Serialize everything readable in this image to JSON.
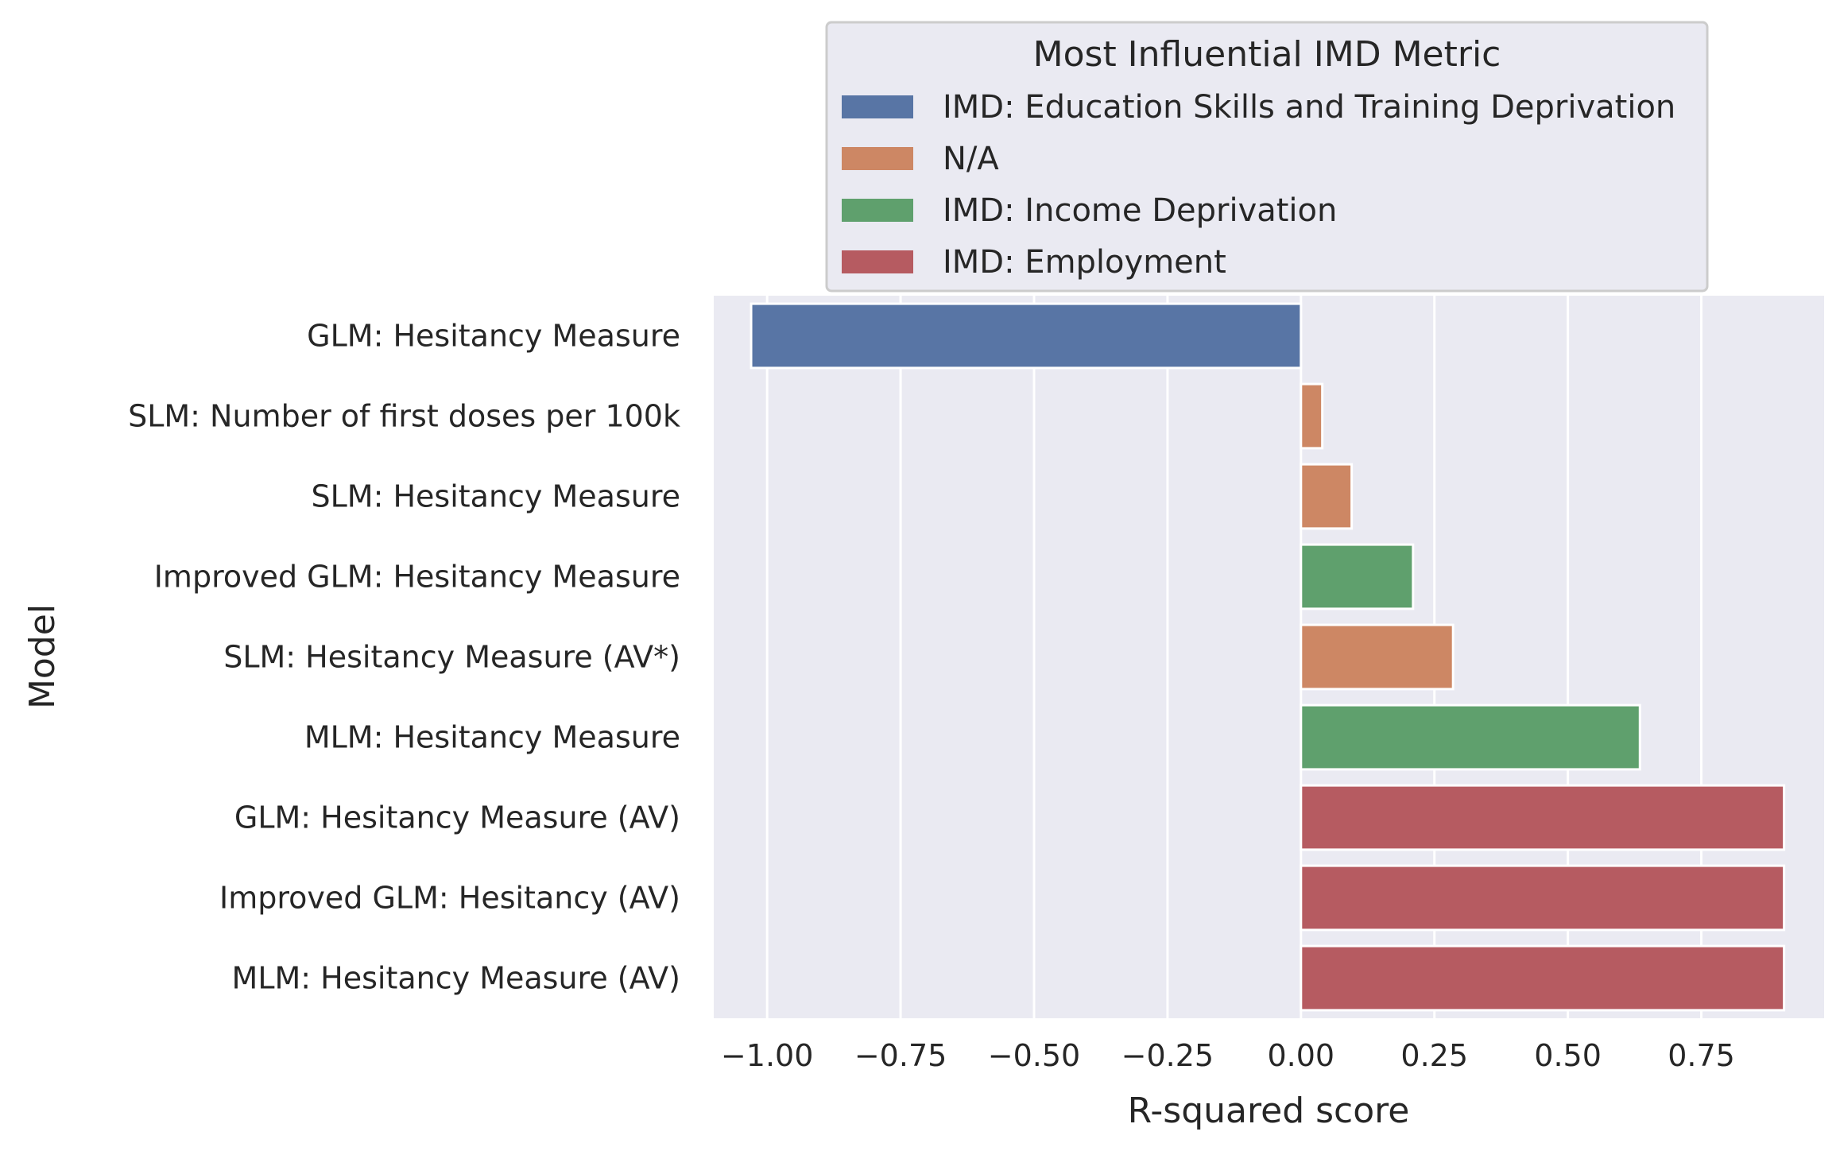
{
  "chart_data": {
    "type": "bar",
    "orientation": "horizontal",
    "xlabel": "R-squared score",
    "ylabel": "Model",
    "xlim": [
      -1.1,
      0.98
    ],
    "xticks": [
      -1.0,
      -0.75,
      -0.5,
      -0.25,
      0.0,
      0.25,
      0.5,
      0.75
    ],
    "xtick_labels": [
      "−1.00",
      "−0.75",
      "−0.50",
      "−0.25",
      "0.00",
      "0.25",
      "0.50",
      "0.75"
    ],
    "grid": true,
    "legend_position": "top",
    "legend": {
      "title": "Most Influential IMD Metric",
      "entries": [
        {
          "label": "IMD: Education Skills and Training Deprivation",
          "color": "#5875a5"
        },
        {
          "label": "N/A",
          "color": "#cd8764"
        },
        {
          "label": "IMD: Income Deprivation",
          "color": "#5fa06d"
        },
        {
          "label": "IMD: Employment",
          "color": "#b65b61"
        }
      ]
    },
    "categories": [
      "GLM:  Hesitancy Measure",
      "SLM:  Number of first doses per 100k",
      "SLM: Hesitancy Measure",
      "Improved GLM:  Hesitancy Measure",
      "SLM:  Hesitancy Measure (AV*)",
      "MLM:  Hesitancy Measure",
      "GLM:  Hesitancy Measure (AV)",
      "Improved GLM:  Hesitancy (AV)",
      "MLM:  Hesitancy Measure (AV)"
    ],
    "values": [
      -1.03,
      0.04,
      0.095,
      0.21,
      0.285,
      0.635,
      0.905,
      0.905,
      0.905
    ],
    "groups": [
      0,
      1,
      1,
      2,
      1,
      2,
      3,
      3,
      3
    ]
  }
}
